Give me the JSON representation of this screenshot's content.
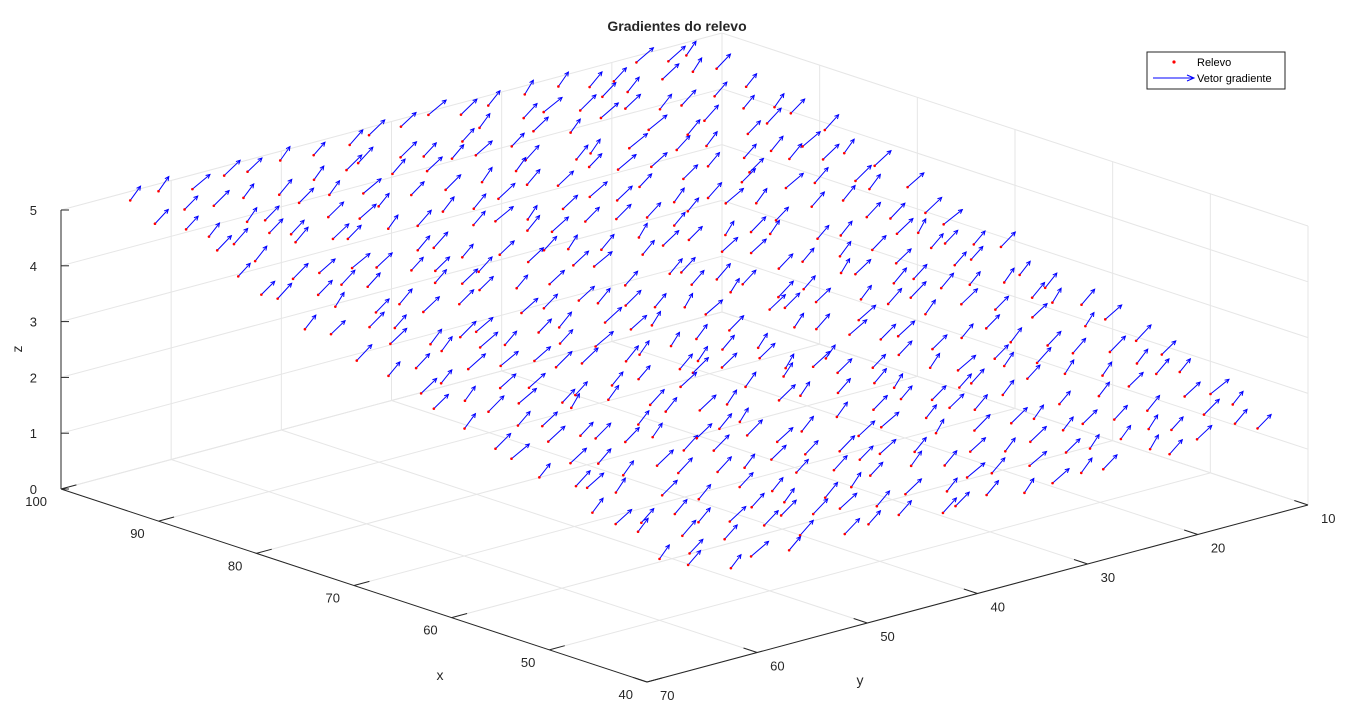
{
  "chart_data": {
    "type": "quiver3",
    "title": "Gradientes do relevo",
    "xlabel": "x",
    "ylabel": "y",
    "zlabel": "z",
    "xlim": [
      40,
      100
    ],
    "ylim": [
      10,
      70
    ],
    "zlim": [
      0,
      5
    ],
    "x_ticks": [
      "40",
      "50",
      "60",
      "70",
      "80",
      "90",
      "100"
    ],
    "y_ticks": [
      "10",
      "20",
      "30",
      "40",
      "50",
      "60",
      "70"
    ],
    "z_ticks": [
      "0",
      "1",
      "2",
      "3",
      "4",
      "5"
    ],
    "grid": true,
    "legend_position": "top-right",
    "legend": [
      {
        "label": "Relevo",
        "marker": "point",
        "color": "#ff0000"
      },
      {
        "label": "Vetor gradiente",
        "marker": "arrow",
        "color": "#0000ff"
      }
    ],
    "colors": {
      "points": "#ff0000",
      "vectors": "#0000ff"
    },
    "surface": {
      "x_range": [
        40,
        100
      ],
      "y_range": [
        12,
        66
      ],
      "z_at_x40": 1.5,
      "z_at_x100": 5.0,
      "approx_grid": "rows along x (~23) by columns along y (~20)",
      "gradient_direction": "toward increasing x and decreasing y"
    },
    "samples": [
      {
        "x": 45,
        "y": 60,
        "z": 1.8
      },
      {
        "x": 45,
        "y": 40,
        "z": 1.8
      },
      {
        "x": 45,
        "y": 20,
        "z": 1.8
      },
      {
        "x": 60,
        "y": 60,
        "z": 2.6
      },
      {
        "x": 60,
        "y": 40,
        "z": 2.6
      },
      {
        "x": 60,
        "y": 20,
        "z": 2.6
      },
      {
        "x": 75,
        "y": 60,
        "z": 3.5
      },
      {
        "x": 75,
        "y": 40,
        "z": 3.5
      },
      {
        "x": 75,
        "y": 20,
        "z": 3.5
      },
      {
        "x": 90,
        "y": 60,
        "z": 4.3
      },
      {
        "x": 90,
        "y": 40,
        "z": 4.3
      },
      {
        "x": 90,
        "y": 20,
        "z": 4.3
      }
    ]
  }
}
